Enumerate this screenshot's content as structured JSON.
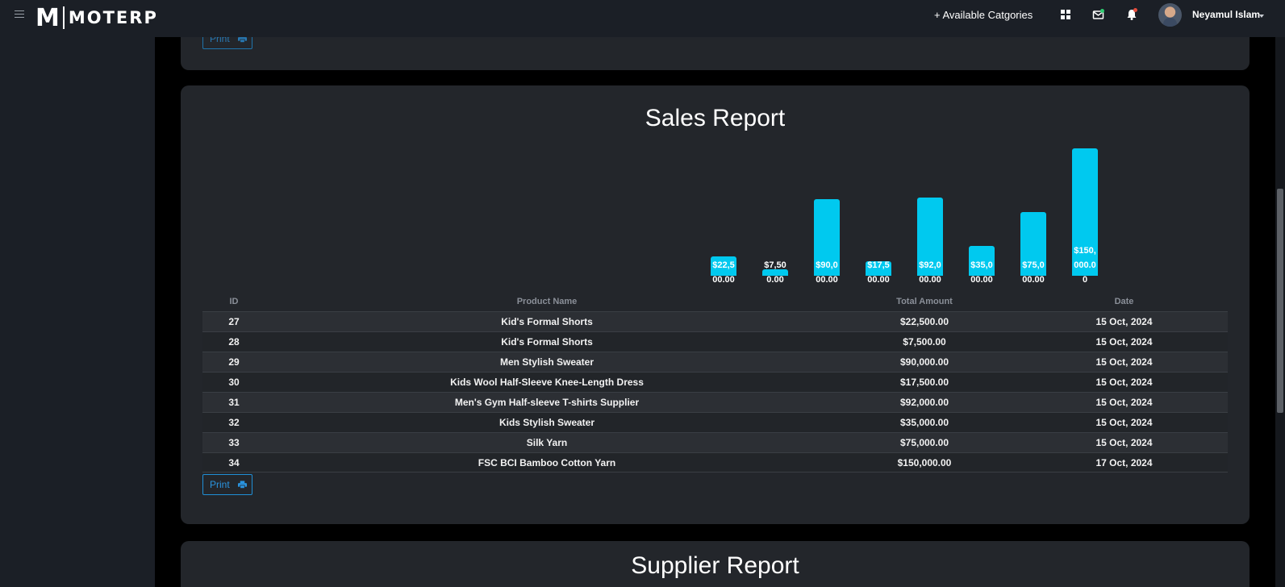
{
  "header": {
    "logo_mark": "M",
    "logo_text": "MOTERP",
    "nav_link": "+ Available Catgories",
    "user_name": "Neyamul Islam",
    "icons": [
      "menu-icon",
      "grid-icon",
      "mail-icon",
      "bell-icon"
    ],
    "colors": {
      "mail_dot": "#2ecc71",
      "bell_dot": "#e74c3c"
    }
  },
  "top_card": {
    "print_label": "Print"
  },
  "sales_report": {
    "title": "Sales Report",
    "print_label": "Print",
    "columns": [
      "ID",
      "Product Name",
      "Total Amount",
      "Date"
    ],
    "rows": [
      {
        "id": "27",
        "name": "Kid's Formal Shorts",
        "amount": "$22,500.00",
        "date": "15 Oct, 2024"
      },
      {
        "id": "28",
        "name": "Kid's Formal Shorts",
        "amount": "$7,500.00",
        "date": "15 Oct, 2024"
      },
      {
        "id": "29",
        "name": "Men Stylish Sweater",
        "amount": "$90,000.00",
        "date": "15 Oct, 2024"
      },
      {
        "id": "30",
        "name": "Kids Wool Half-Sleeve Knee-Length Dress",
        "amount": "$17,500.00",
        "date": "15 Oct, 2024"
      },
      {
        "id": "31",
        "name": "Men's Gym Half-sleeve T-shirts Supplier",
        "amount": "$92,000.00",
        "date": "15 Oct, 2024"
      },
      {
        "id": "32",
        "name": "Kids Stylish Sweater",
        "amount": "$35,000.00",
        "date": "15 Oct, 2024"
      },
      {
        "id": "33",
        "name": "Silk Yarn",
        "amount": "$75,000.00",
        "date": "15 Oct, 2024"
      },
      {
        "id": "34",
        "name": "FSC BCI Bamboo Cotton Yarn",
        "amount": "$150,000.00",
        "date": "17 Oct, 2024"
      }
    ]
  },
  "chart_data": {
    "type": "bar",
    "values": [
      22500,
      7500,
      90000,
      17500,
      92000,
      35000,
      75000,
      150000
    ],
    "labels": [
      [
        "$22,5",
        "00.00"
      ],
      [
        "$7,50",
        "0.00"
      ],
      [
        "$90,0",
        "00.00"
      ],
      [
        "$17,5",
        "00.00"
      ],
      [
        "$92,0",
        "00.00"
      ],
      [
        "$35,0",
        "00.00"
      ],
      [
        "$75,0",
        "00.00"
      ],
      [
        "$150,",
        "000.0",
        "0"
      ]
    ],
    "ylim": [
      0,
      150000
    ],
    "color": "#00c9ef"
  },
  "supplier_report": {
    "title": "Supplier Report"
  }
}
